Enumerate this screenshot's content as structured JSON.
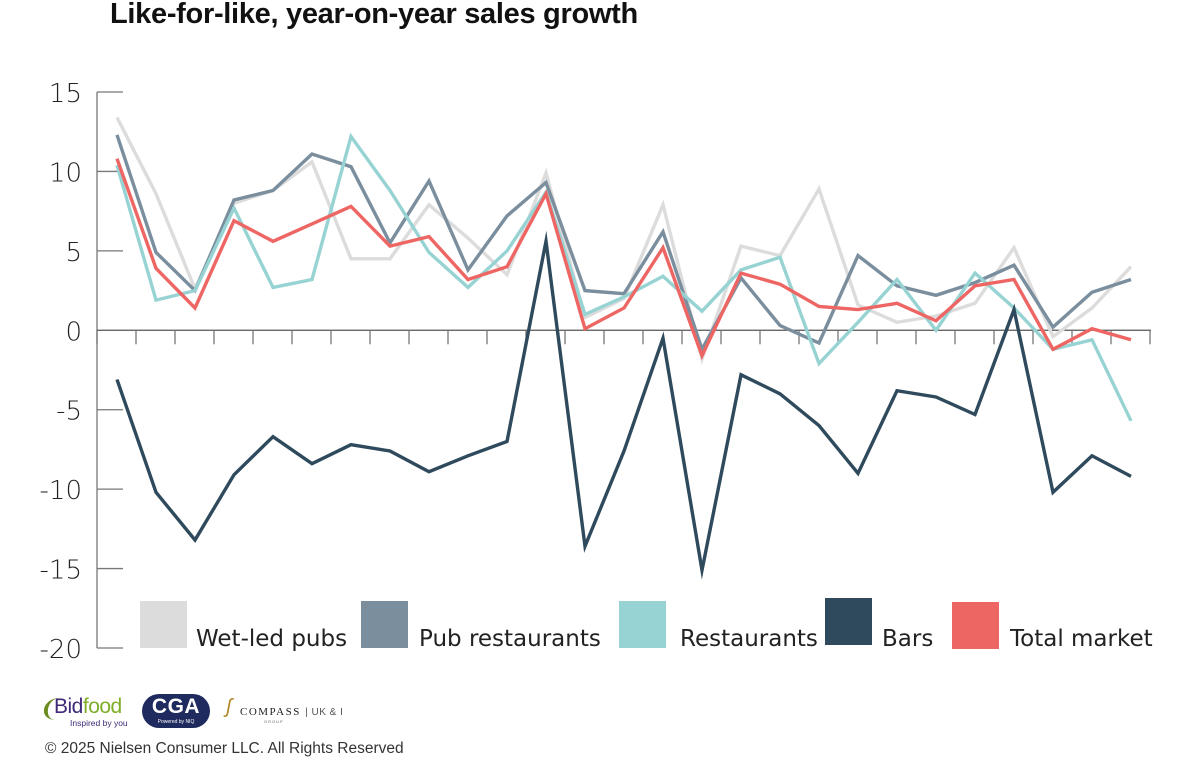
{
  "title": "Like-for-like, year-on-year sales growth",
  "footer": {
    "copyright": "© 2025 Nielsen Consumer LLC. All Rights Reserved",
    "logos": {
      "bidfood_name_a": "Bid",
      "bidfood_name_b": "food",
      "bidfood_tagline": "Inspired by you",
      "cga_name": "CGA",
      "cga_tagline": "Powered by NIQ",
      "compass_name": "COMPASS",
      "compass_region": "| UK & I",
      "compass_sub": "GROUP"
    }
  },
  "chart_data": {
    "type": "line",
    "title": "Like-for-like, year-on-year sales growth",
    "xlabel": "",
    "ylabel": "",
    "ylim": [
      -20,
      15
    ],
    "yticks": [
      15,
      10,
      5,
      0,
      -5,
      -10,
      -15,
      -20
    ],
    "ytick_labels": [
      "15",
      "10",
      "5",
      "0",
      "-5",
      "-10",
      "-15",
      "-20"
    ],
    "x_points": 27,
    "x_labels": [],
    "grid": false,
    "legend_position": "bottom",
    "series": [
      {
        "name": "Wet-led pubs",
        "color": "#dcdcdc",
        "values": [
          13.4,
          8.6,
          2.6,
          8.0,
          8.8,
          10.6,
          4.5,
          4.5,
          7.9,
          5.8,
          3.5,
          9.9,
          0.8,
          2.0,
          7.9,
          -1.8,
          5.3,
          4.7,
          8.9,
          1.6,
          0.5,
          0.9,
          1.7,
          5.2,
          -0.4,
          1.4,
          4.0
        ]
      },
      {
        "name": "Pub restaurants",
        "color": "#7a8e9e",
        "values": [
          12.3,
          4.9,
          2.5,
          8.2,
          8.8,
          11.1,
          10.3,
          5.5,
          9.4,
          3.8,
          7.2,
          9.3,
          2.5,
          2.3,
          6.2,
          -1.2,
          3.3,
          0.3,
          -0.8,
          4.7,
          2.8,
          2.2,
          3.0,
          4.1,
          0.2,
          2.4,
          3.2
        ]
      },
      {
        "name": "Restaurants",
        "color": "#98d3d4",
        "values": [
          10.4,
          1.9,
          2.5,
          7.7,
          2.7,
          3.2,
          12.2,
          8.8,
          4.9,
          2.7,
          5.0,
          8.7,
          1.0,
          2.1,
          3.4,
          1.2,
          3.8,
          4.6,
          -2.1,
          0.5,
          3.2,
          0.0,
          3.6,
          1.4,
          -1.2,
          -0.6,
          -5.7
        ]
      },
      {
        "name": "Bars",
        "color": "#2e4a5c",
        "values": [
          -3.1,
          -10.2,
          -13.2,
          -9.1,
          -6.7,
          -8.4,
          -7.2,
          -7.6,
          -8.9,
          -7.9,
          -7.0,
          5.6,
          -13.6,
          -7.6,
          -0.5,
          -15.1,
          -2.8,
          -4.0,
          -6.0,
          -9.0,
          -3.8,
          -4.2,
          -5.3,
          1.3,
          -10.2,
          -7.9,
          -9.2
        ]
      },
      {
        "name": "Total market",
        "color": "#ee6664",
        "values": [
          10.8,
          3.9,
          1.4,
          6.9,
          5.6,
          6.7,
          7.8,
          5.3,
          5.9,
          3.2,
          4.0,
          8.6,
          0.1,
          1.4,
          5.2,
          -1.6,
          3.6,
          2.9,
          1.5,
          1.3,
          1.7,
          0.6,
          2.8,
          3.2,
          -1.2,
          0.1,
          -0.6
        ]
      }
    ]
  }
}
